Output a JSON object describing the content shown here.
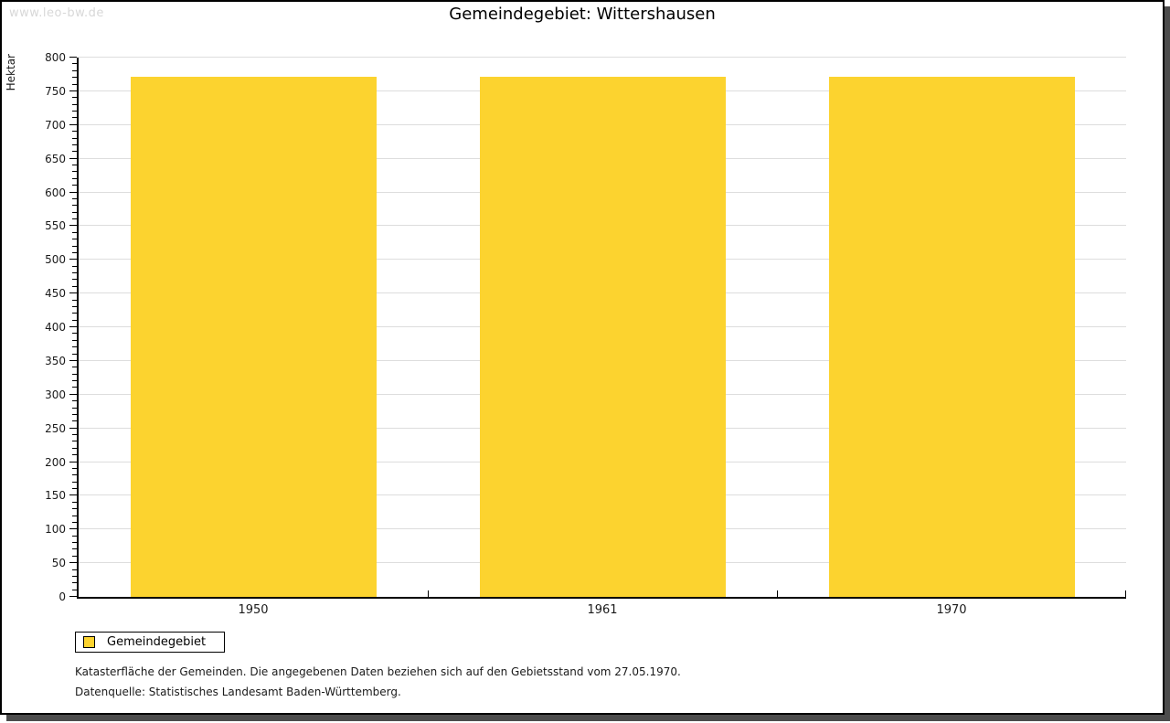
{
  "watermark": "www.leo-bw.de",
  "legend": {
    "label": "Gemeindegebiet"
  },
  "footnotes": [
    "Katasterfläche der Gemeinden. Die angegebenen Daten beziehen sich auf den Gebietsstand vom 27.05.1970.",
    "Datenquelle: Statistisches Landesamt Baden-Württemberg."
  ],
  "colors": {
    "bar": "#fcd32f",
    "grid": "#dddddd",
    "axis": "#000000",
    "watermark": "#d8d8d8",
    "frame_shadow": "#4c4c4c"
  },
  "chart_data": {
    "type": "bar",
    "title": "Gemeindegebiet: Wittershausen",
    "categories": [
      "1950",
      "1961",
      "1970"
    ],
    "series": [
      {
        "name": "Gemeindegebiet",
        "values": [
          772,
          772,
          772
        ]
      }
    ],
    "xlabel": "",
    "ylabel": "Hektar",
    "ylim": [
      0,
      800
    ],
    "ytick_step": 50,
    "minor_tick_step": 10,
    "grid": "horizontal-major",
    "legend_position": "bottom-left",
    "bar_color": "#fcd32f"
  }
}
